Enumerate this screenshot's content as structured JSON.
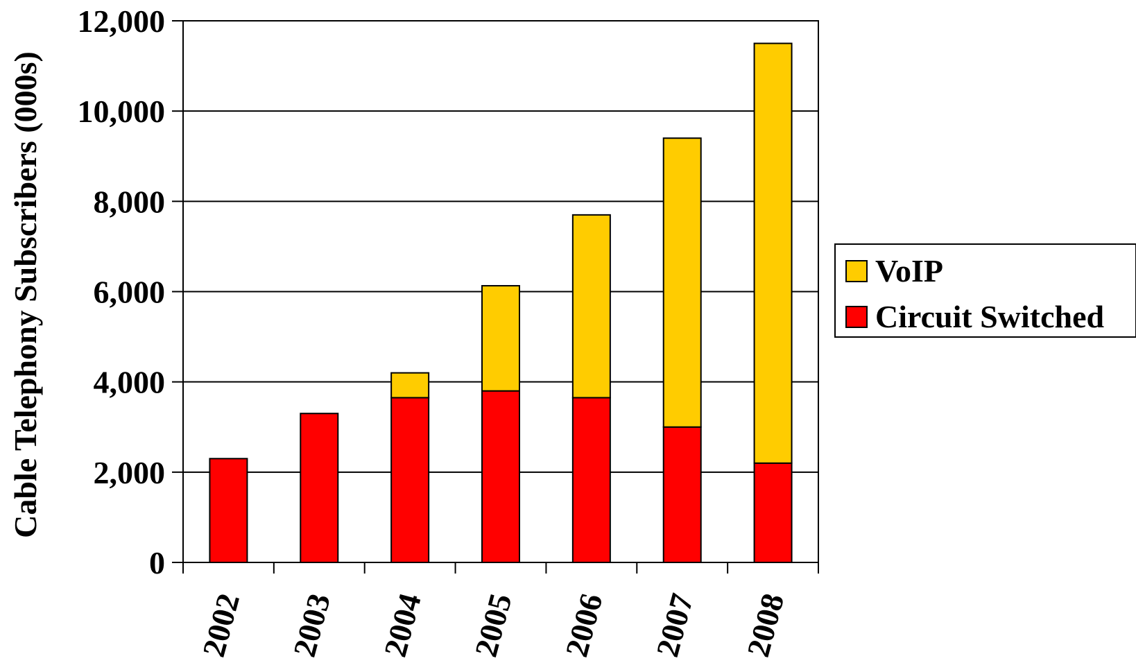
{
  "chart_data": {
    "type": "bar",
    "stacked": true,
    "title": "",
    "xlabel": "",
    "ylabel": "Cable Telephony Subscribers (000s)",
    "categories": [
      "2002",
      "2003",
      "2004",
      "2005",
      "2006",
      "2007",
      "2008"
    ],
    "series": [
      {
        "name": "Circuit Switched",
        "color": "#ff0000",
        "values": [
          2300,
          3300,
          3650,
          3800,
          3650,
          3000,
          2200
        ]
      },
      {
        "name": "VoIP",
        "color": "#ffcc00",
        "values": [
          0,
          0,
          550,
          2330,
          4050,
          6400,
          9300
        ]
      }
    ],
    "ylim": [
      0,
      12000
    ],
    "yticks": [
      0,
      2000,
      4000,
      6000,
      8000,
      10000,
      12000
    ],
    "ytick_labels": [
      "0",
      "2,000",
      "4,000",
      "6,000",
      "8,000",
      "10,000",
      "12,000"
    ],
    "grid": true,
    "legend_position": "right",
    "legend_order": [
      "VoIP",
      "Circuit Switched"
    ],
    "xtick_rotation": "vertical"
  }
}
